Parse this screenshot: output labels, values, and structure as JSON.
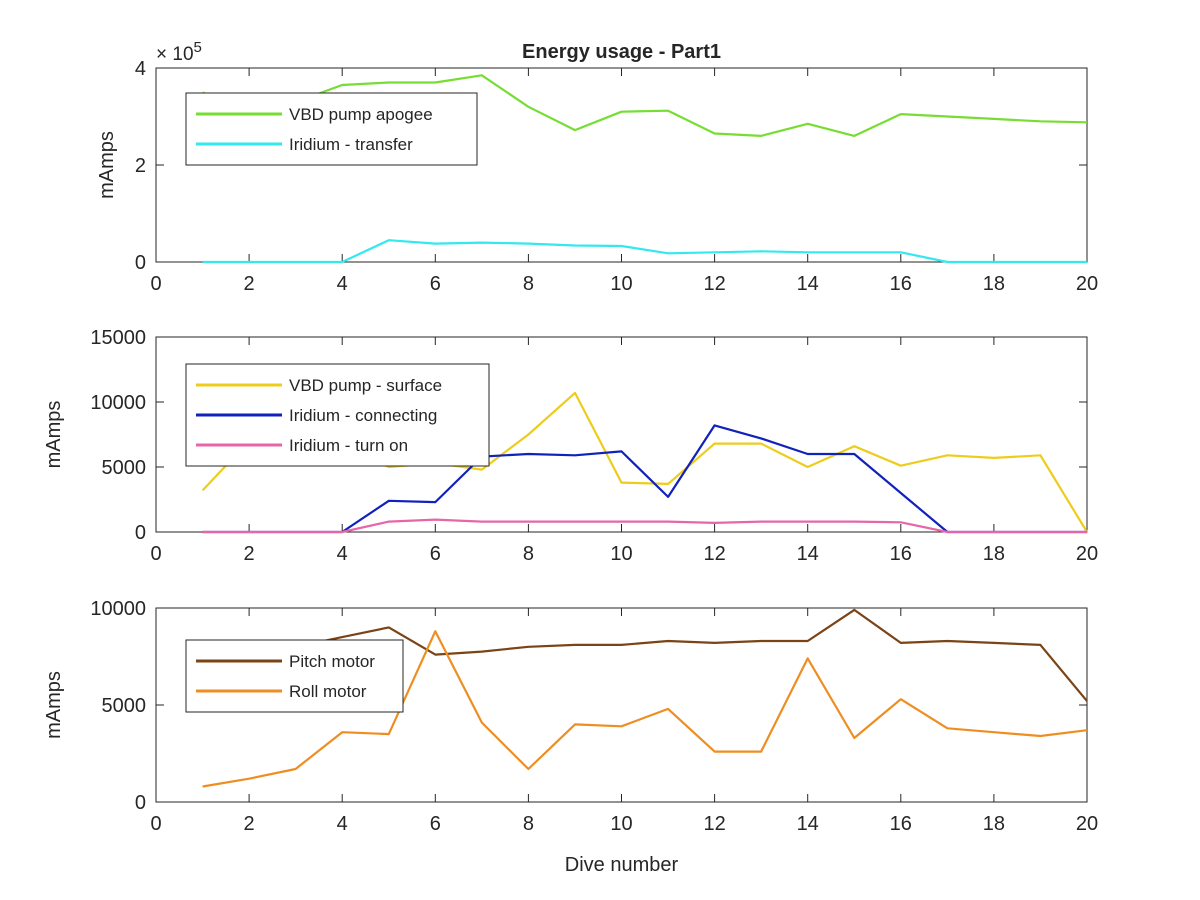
{
  "figure": {
    "title": "Energy usage - Part1",
    "xlabel": "Dive number"
  },
  "chart_data": [
    {
      "type": "line",
      "title": "Energy usage - Part1",
      "xlabel": "",
      "ylabel": "mAmps",
      "xlim": [
        0,
        20
      ],
      "ylim": [
        0,
        400000
      ],
      "xticks": [
        0,
        2,
        4,
        6,
        8,
        10,
        12,
        14,
        16,
        18,
        20
      ],
      "yticks": [
        0,
        2,
        4
      ],
      "ytick_scale": 100000,
      "exponent_label": "× 10",
      "exponent_power": "5",
      "grid": false,
      "legend_position": "upper-left",
      "x": [
        1,
        2,
        3,
        4,
        5,
        6,
        7,
        8,
        9,
        10,
        11,
        12,
        13,
        14,
        15,
        16,
        17,
        18,
        19,
        20
      ],
      "series": [
        {
          "name": "VBD pump apogee",
          "color": "#77dd33",
          "values": [
            350000,
            300000,
            330000,
            365000,
            370000,
            370000,
            385000,
            320000,
            272000,
            310000,
            312000,
            265000,
            260000,
            285000,
            260000,
            305000,
            300000,
            295000,
            290000,
            288000
          ]
        },
        {
          "name": "Iridium - transfer",
          "color": "#33e8ee",
          "values": [
            0,
            0,
            0,
            0,
            45000,
            38000,
            40000,
            38000,
            34000,
            33000,
            18000,
            20000,
            22000,
            20000,
            20000,
            20000,
            0,
            0,
            0,
            0
          ]
        }
      ]
    },
    {
      "type": "line",
      "xlabel": "",
      "ylabel": "mAmps",
      "xlim": [
        0,
        20
      ],
      "ylim": [
        0,
        15000
      ],
      "xticks": [
        0,
        2,
        4,
        6,
        8,
        10,
        12,
        14,
        16,
        18,
        20
      ],
      "yticks": [
        0,
        5000,
        10000,
        15000
      ],
      "grid": false,
      "legend_position": "upper-left",
      "x": [
        1,
        2,
        3,
        4,
        5,
        6,
        7,
        8,
        9,
        10,
        11,
        12,
        13,
        14,
        15,
        16,
        17,
        18,
        19,
        20
      ],
      "series": [
        {
          "name": "VBD pump - surface",
          "color": "#edcc1c",
          "values": [
            3200,
            7000,
            7000,
            6500,
            5000,
            5300,
            4800,
            7500,
            10700,
            3800,
            3700,
            6800,
            6800,
            5000,
            6600,
            5100,
            5900,
            5700,
            5900,
            0
          ]
        },
        {
          "name": "Iridium - connecting",
          "color": "#1121bb",
          "values": [
            0,
            0,
            0,
            0,
            2400,
            2300,
            5800,
            6000,
            5900,
            6200,
            2700,
            8200,
            7200,
            6000,
            6000,
            3000,
            0,
            0,
            0,
            0
          ]
        },
        {
          "name": "Iridium - turn on",
          "color": "#e666aa",
          "values": [
            0,
            0,
            0,
            0,
            800,
            950,
            800,
            800,
            800,
            800,
            800,
            700,
            800,
            800,
            800,
            750,
            0,
            0,
            0,
            0
          ]
        }
      ]
    },
    {
      "type": "line",
      "xlabel": "Dive number",
      "ylabel": "mAmps",
      "xlim": [
        0,
        20
      ],
      "ylim": [
        0,
        10000
      ],
      "xticks": [
        0,
        2,
        4,
        6,
        8,
        10,
        12,
        14,
        16,
        18,
        20
      ],
      "yticks": [
        0,
        5000,
        10000
      ],
      "grid": false,
      "legend_position": "upper-left",
      "x": [
        1,
        2,
        3,
        4,
        5,
        6,
        7,
        8,
        9,
        10,
        11,
        12,
        13,
        14,
        15,
        16,
        17,
        18,
        19,
        20
      ],
      "series": [
        {
          "name": "Pitch motor",
          "color": "#7a4416",
          "values": [
            6000,
            7000,
            8000,
            8500,
            9000,
            7600,
            7750,
            8000,
            8100,
            8100,
            8300,
            8200,
            8300,
            8300,
            9900,
            8200,
            8300,
            8200,
            8100,
            5200
          ]
        },
        {
          "name": "Roll motor",
          "color": "#ee8e22",
          "values": [
            800,
            1200,
            1700,
            3600,
            3500,
            8800,
            4100,
            1700,
            4000,
            3900,
            4800,
            2600,
            2600,
            7400,
            3300,
            5300,
            3800,
            3600,
            3400,
            3700
          ]
        }
      ]
    }
  ]
}
